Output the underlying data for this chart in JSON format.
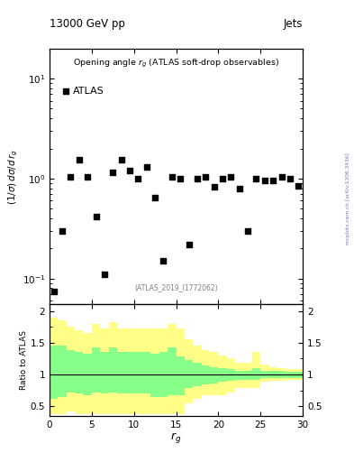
{
  "title_header": "13000 GeV pp",
  "title_right": "Jets",
  "plot_title": "Opening angle r$_g$ (ATLAS soft-drop observables)",
  "legend_label": "ATLAS",
  "ylabel_main": "(1/σ) dσ/d r_g",
  "ylabel_ratio": "Ratio to ATLAS",
  "xlabel": "r_g",
  "watermark": "(ATLAS_2019_I1772062)",
  "side_label": "mcplots.cern.ch [arXiv:1306.3436]",
  "data_x": [
    0.5,
    1.5,
    2.5,
    3.5,
    4.5,
    5.5,
    6.5,
    7.5,
    8.5,
    9.5,
    10.5,
    11.5,
    12.5,
    13.5,
    14.5,
    15.5,
    16.5,
    17.5,
    18.5,
    19.5,
    20.5,
    21.5,
    22.5,
    23.5,
    24.5,
    25.5,
    26.5,
    27.5,
    28.5,
    29.5
  ],
  "data_y": [
    0.075,
    0.3,
    1.05,
    1.55,
    1.05,
    0.42,
    0.11,
    1.15,
    1.55,
    1.2,
    1.0,
    1.3,
    0.65,
    0.15,
    1.05,
    1.0,
    0.22,
    1.0,
    1.05,
    0.82,
    1.0,
    1.05,
    0.8,
    0.3,
    1.0,
    0.95,
    0.95,
    1.05,
    1.0,
    0.85
  ],
  "ratio_bin_edges": [
    0,
    1,
    2,
    3,
    4,
    5,
    6,
    7,
    8,
    9,
    10,
    11,
    12,
    13,
    14,
    15,
    16,
    17,
    18,
    19,
    20,
    21,
    22,
    23,
    24,
    25,
    26,
    27,
    28,
    29,
    30
  ],
  "ratio_yellow_lo": [
    0.38,
    0.38,
    0.42,
    0.38,
    0.38,
    0.38,
    0.38,
    0.38,
    0.38,
    0.38,
    0.38,
    0.38,
    0.38,
    0.38,
    0.38,
    0.38,
    0.55,
    0.62,
    0.68,
    0.68,
    0.68,
    0.72,
    0.78,
    0.78,
    0.78,
    0.88,
    0.9,
    0.9,
    0.92,
    0.92
  ],
  "ratio_yellow_hi": [
    1.9,
    1.85,
    1.75,
    1.7,
    1.65,
    1.8,
    1.72,
    1.82,
    1.72,
    1.72,
    1.72,
    1.72,
    1.72,
    1.72,
    1.8,
    1.72,
    1.55,
    1.45,
    1.38,
    1.35,
    1.3,
    1.25,
    1.18,
    1.18,
    1.35,
    1.15,
    1.12,
    1.1,
    1.08,
    1.08
  ],
  "ratio_green_lo": [
    0.62,
    0.65,
    0.72,
    0.7,
    0.68,
    0.72,
    0.7,
    0.72,
    0.7,
    0.7,
    0.7,
    0.7,
    0.65,
    0.65,
    0.68,
    0.68,
    0.78,
    0.82,
    0.85,
    0.86,
    0.88,
    0.9,
    0.92,
    0.92,
    0.92,
    0.94,
    0.94,
    0.95,
    0.95,
    0.95
  ],
  "ratio_green_hi": [
    1.45,
    1.45,
    1.38,
    1.35,
    1.32,
    1.42,
    1.35,
    1.42,
    1.35,
    1.35,
    1.35,
    1.35,
    1.32,
    1.35,
    1.42,
    1.28,
    1.22,
    1.18,
    1.14,
    1.12,
    1.1,
    1.08,
    1.06,
    1.06,
    1.1,
    1.06,
    1.05,
    1.05,
    1.04,
    1.04
  ],
  "ylim_main": [
    0.055,
    20
  ],
  "ylim_ratio": [
    0.35,
    2.1
  ],
  "xlim": [
    0,
    30
  ],
  "color_yellow": "#ffff88",
  "color_green": "#88ff88",
  "marker_color": "black",
  "marker_size": 18,
  "line_color": "black",
  "background_color": "white"
}
